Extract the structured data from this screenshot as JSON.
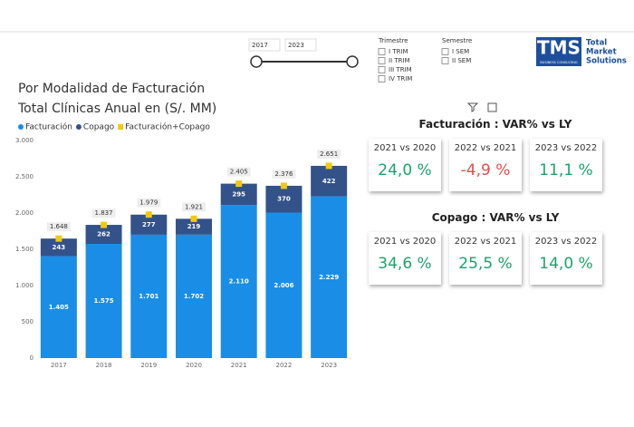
{
  "slicers": {
    "year_start": "2017",
    "year_end": "2023",
    "trimestre": {
      "title": "Trimestre",
      "options": [
        "I TRIM",
        "II TRIM",
        "III TRIM",
        "IV TRIM"
      ]
    },
    "semestre": {
      "title": "Semestre",
      "options": [
        "I SEM",
        "II SEM"
      ]
    }
  },
  "logo": {
    "mark": "TMS",
    "name_lines": [
      "Total",
      "Market",
      "Solutions"
    ],
    "tagline": "BUSINESS CONSULTING"
  },
  "chart_data": {
    "type": "bar",
    "stacked": true,
    "title": "Por Modalidad de Facturación",
    "subtitle": "Total Clínicas Anual en (S/. MM)",
    "categories": [
      "2017",
      "2018",
      "2019",
      "2020",
      "2021",
      "2022",
      "2023"
    ],
    "series": [
      {
        "name": "Facturación",
        "color": "#1a8ee6",
        "values": [
          1405,
          1575,
          1701,
          1702,
          2110,
          2006,
          2229
        ],
        "value_labels": [
          "1.405",
          "1.575",
          "1.701",
          "1.702",
          "2.110",
          "2.006",
          "2.229"
        ]
      },
      {
        "name": "Copago",
        "color": "#33528a",
        "values": [
          243,
          262,
          277,
          219,
          295,
          370,
          422
        ]
      },
      {
        "name": "Facturación+Copago",
        "type": "scatter",
        "color": "#f2c811",
        "values": [
          1648,
          1837,
          1979,
          1921,
          2405,
          2376,
          2651
        ],
        "value_labels": [
          "1.648",
          "1.837",
          "1.979",
          "1.921",
          "2.405",
          "2.376",
          "2.651"
        ]
      }
    ],
    "ylim": [
      0,
      3000
    ],
    "yticks": [
      0,
      500,
      {
        "value": 1000,
        "label": "1.000"
      },
      {
        "value": 1500,
        "label": "1.500"
      },
      {
        "value": 2000,
        "label": "2.000"
      },
      {
        "value": 2500,
        "label": "2.500"
      },
      {
        "value": 3000,
        "label": "3.000"
      }
    ]
  },
  "kpis": [
    {
      "title": "Facturación : VAR% vs LY",
      "cards": [
        {
          "label": "2021 vs 2020",
          "value": "24,0 %",
          "color": "#1aa36b"
        },
        {
          "label": "2022 vs 2021",
          "value": "-4,9 %",
          "color": "#e84b4b"
        },
        {
          "label": "2023 vs 2022",
          "value": "11,1 %",
          "color": "#1aa36b"
        }
      ]
    },
    {
      "title": "Copago : VAR% vs LY",
      "cards": [
        {
          "label": "2021 vs 2020",
          "value": "34,6 %",
          "color": "#1aa36b"
        },
        {
          "label": "2022 vs 2021",
          "value": "25,5 %",
          "color": "#1aa36b"
        },
        {
          "label": "2023 vs 2022",
          "value": "14,0 %",
          "color": "#1aa36b"
        }
      ]
    }
  ]
}
